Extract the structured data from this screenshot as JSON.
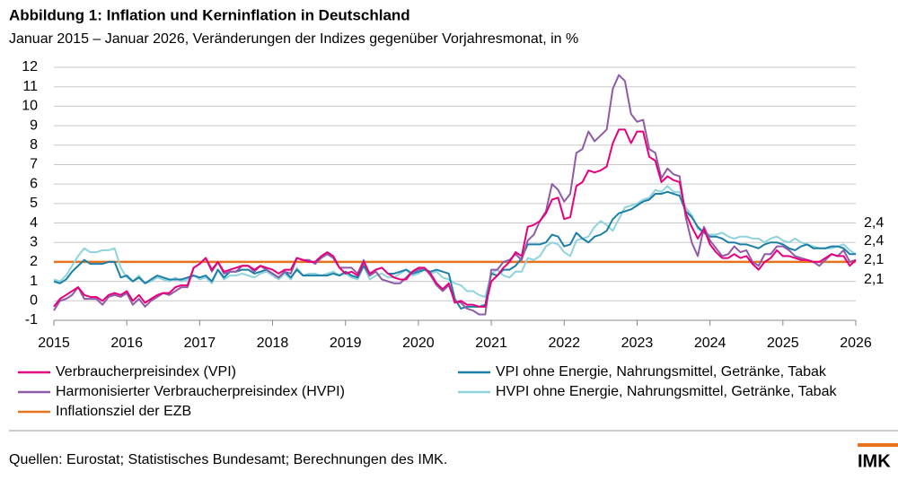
{
  "chart_data": {
    "type": "line",
    "title": "Abbildung 1: Inflation und Kerninflation in Deutschland",
    "subtitle": "Januar 2015 – Januar 2026, Veränderungen der Indizes gegenüber Vorjahresmonat, in %",
    "x": [
      2015,
      2015.083,
      2015.167,
      2015.25,
      2015.333,
      2015.417,
      2015.5,
      2015.583,
      2015.667,
      2015.75,
      2015.833,
      2015.917,
      2016,
      2016.083,
      2016.167,
      2016.25,
      2016.333,
      2016.417,
      2016.5,
      2016.583,
      2016.667,
      2016.75,
      2016.833,
      2016.917,
      2017,
      2017.083,
      2017.167,
      2017.25,
      2017.333,
      2017.417,
      2017.5,
      2017.583,
      2017.667,
      2017.75,
      2017.833,
      2017.917,
      2018,
      2018.083,
      2018.167,
      2018.25,
      2018.333,
      2018.417,
      2018.5,
      2018.583,
      2018.667,
      2018.75,
      2018.833,
      2018.917,
      2019,
      2019.083,
      2019.167,
      2019.25,
      2019.333,
      2019.417,
      2019.5,
      2019.583,
      2019.667,
      2019.75,
      2019.833,
      2019.917,
      2020,
      2020.083,
      2020.167,
      2020.25,
      2020.333,
      2020.417,
      2020.5,
      2020.583,
      2020.667,
      2020.75,
      2020.833,
      2020.917,
      2021,
      2021.083,
      2021.167,
      2021.25,
      2021.333,
      2021.417,
      2021.5,
      2021.583,
      2021.667,
      2021.75,
      2021.833,
      2021.917,
      2022,
      2022.083,
      2022.167,
      2022.25,
      2022.333,
      2022.417,
      2022.5,
      2022.583,
      2022.667,
      2022.75,
      2022.833,
      2022.917,
      2023,
      2023.083,
      2023.167,
      2023.25,
      2023.333,
      2023.417,
      2023.5,
      2023.583,
      2023.667,
      2023.75,
      2023.833,
      2023.917,
      2024,
      2024.083,
      2024.167,
      2024.25,
      2024.333,
      2024.417,
      2024.5,
      2024.583,
      2024.667,
      2024.75,
      2024.833,
      2024.917,
      2025,
      2025.083,
      2025.167,
      2025.25,
      2025.333,
      2025.417,
      2025.5,
      2025.583,
      2025.667,
      2025.75,
      2025.833,
      2025.917,
      2026
    ],
    "series": [
      {
        "name": "Verbraucherpreisindex (VPI)",
        "color": "#e6007e",
        "end_label": "2,1",
        "values": [
          -0.3,
          0.1,
          0.3,
          0.5,
          0.7,
          0.3,
          0.2,
          0.2,
          0.0,
          0.3,
          0.4,
          0.3,
          0.5,
          0.0,
          0.3,
          -0.1,
          0.1,
          0.3,
          0.4,
          0.4,
          0.7,
          0.8,
          0.8,
          1.7,
          1.9,
          2.2,
          1.6,
          2.0,
          1.5,
          1.6,
          1.7,
          1.8,
          1.8,
          1.6,
          1.8,
          1.7,
          1.6,
          1.4,
          1.6,
          1.6,
          2.2,
          2.1,
          2.0,
          2.0,
          2.3,
          2.5,
          2.3,
          1.7,
          1.4,
          1.5,
          1.3,
          2.0,
          1.4,
          1.6,
          1.7,
          1.4,
          1.2,
          1.1,
          1.1,
          1.5,
          1.7,
          1.7,
          1.4,
          0.9,
          0.6,
          0.9,
          -0.1,
          0.0,
          -0.2,
          -0.2,
          -0.3,
          -0.3,
          1.0,
          1.3,
          1.7,
          2.0,
          2.5,
          2.3,
          3.8,
          3.9,
          4.1,
          4.5,
          5.2,
          5.3,
          4.2,
          4.3,
          5.9,
          6.1,
          6.7,
          6.6,
          6.7,
          6.9,
          8.1,
          8.8,
          8.8,
          8.1,
          8.7,
          8.7,
          7.4,
          7.2,
          6.1,
          6.4,
          6.2,
          6.1,
          4.5,
          3.8,
          3.2,
          3.7,
          2.9,
          2.5,
          2.2,
          2.2,
          2.4,
          2.2,
          2.3,
          1.9,
          1.6,
          2.0,
          2.2,
          2.6,
          2.3,
          2.3,
          2.2,
          2.1,
          2.1,
          2.0,
          2.0,
          2.2,
          2.4,
          2.3,
          2.3,
          1.8,
          2.1
        ]
      },
      {
        "name": "Harmonisierter Verbraucherpreisindex (HVPI)",
        "color": "#8e5ba6",
        "end_label": "2,1",
        "values": [
          -0.5,
          0.0,
          0.1,
          0.3,
          0.7,
          0.1,
          0.1,
          0.1,
          -0.2,
          0.2,
          0.3,
          0.2,
          0.4,
          -0.2,
          0.1,
          -0.3,
          0.0,
          0.2,
          0.4,
          0.3,
          0.5,
          0.7,
          0.7,
          1.7,
          1.9,
          2.2,
          1.5,
          2.0,
          1.4,
          1.5,
          1.5,
          1.8,
          1.8,
          1.5,
          1.8,
          1.6,
          1.4,
          1.2,
          1.5,
          1.4,
          2.2,
          2.1,
          2.1,
          1.9,
          2.2,
          2.4,
          2.2,
          1.7,
          1.7,
          1.7,
          1.4,
          2.1,
          1.3,
          1.5,
          1.1,
          1.0,
          0.9,
          0.9,
          1.2,
          1.5,
          1.6,
          1.7,
          1.3,
          0.8,
          0.5,
          0.8,
          0.0,
          -0.1,
          -0.4,
          -0.5,
          -0.7,
          -0.7,
          1.6,
          1.6,
          2.0,
          2.1,
          2.4,
          2.1,
          3.1,
          3.4,
          4.1,
          4.6,
          6.0,
          5.7,
          5.1,
          5.5,
          7.6,
          7.8,
          8.7,
          8.2,
          8.5,
          8.8,
          10.9,
          11.6,
          11.3,
          9.6,
          9.2,
          9.3,
          7.8,
          7.6,
          6.3,
          6.8,
          6.5,
          6.4,
          4.3,
          3.0,
          2.3,
          3.8,
          3.1,
          2.7,
          2.3,
          2.4,
          2.8,
          2.5,
          2.6,
          2.0,
          1.8,
          2.4,
          2.4,
          2.8,
          2.8,
          2.6,
          2.3,
          2.2,
          2.1,
          2.0,
          1.8,
          2.1,
          2.4,
          2.3,
          2.6,
          2.0,
          2.1
        ]
      },
      {
        "name": "VPI ohne Energie, Nahrungsmittel, Getränke, Tabak",
        "color": "#1b7fa8",
        "end_label": "2,4",
        "values": [
          1.0,
          0.9,
          1.1,
          1.5,
          1.8,
          2.1,
          1.9,
          1.9,
          1.9,
          2.0,
          2.0,
          1.2,
          1.3,
          1.0,
          1.2,
          0.9,
          1.1,
          1.3,
          1.2,
          1.1,
          1.1,
          1.1,
          1.2,
          1.3,
          1.2,
          1.3,
          1.0,
          1.6,
          1.2,
          1.5,
          1.5,
          1.6,
          1.6,
          1.4,
          1.5,
          1.6,
          1.4,
          1.2,
          1.5,
          1.2,
          1.6,
          1.3,
          1.3,
          1.3,
          1.3,
          1.3,
          1.4,
          1.3,
          1.5,
          1.3,
          1.2,
          1.8,
          1.3,
          1.6,
          1.7,
          1.4,
          1.4,
          1.5,
          1.6,
          1.4,
          1.5,
          1.6,
          1.5,
          1.6,
          1.5,
          1.4,
          0.1,
          -0.4,
          -0.3,
          -0.3,
          -0.3,
          -0.2,
          1.4,
          1.3,
          1.6,
          1.6,
          1.8,
          2.2,
          2.9,
          2.9,
          2.9,
          3.0,
          3.4,
          3.3,
          2.8,
          2.9,
          3.5,
          3.2,
          3.0,
          3.3,
          3.4,
          3.6,
          4.2,
          4.5,
          4.6,
          4.7,
          4.9,
          5.1,
          5.2,
          5.5,
          5.5,
          5.6,
          5.5,
          5.4,
          4.6,
          4.3,
          3.8,
          3.5,
          3.3,
          3.3,
          3.2,
          3.0,
          3.0,
          2.9,
          2.9,
          2.8,
          2.7,
          2.9,
          3.0,
          3.0,
          2.9,
          2.7,
          2.6,
          2.8,
          2.9,
          2.7,
          2.7,
          2.7,
          2.8,
          2.8,
          2.7,
          2.4,
          2.4
        ]
      },
      {
        "name": "HVPI ohne Energie, Nahrungsmittel, Getränke, Tabak",
        "color": "#8fd3dc",
        "end_label": "2,4",
        "values": [
          1.1,
          1.0,
          1.3,
          1.8,
          2.3,
          2.7,
          2.5,
          2.5,
          2.6,
          2.6,
          2.7,
          1.7,
          1.2,
          1.0,
          1.3,
          0.9,
          1.0,
          1.2,
          1.1,
          1.0,
          1.2,
          1.0,
          1.1,
          1.3,
          1.1,
          1.2,
          0.9,
          1.6,
          1.1,
          1.3,
          1.3,
          1.4,
          1.3,
          1.2,
          1.4,
          1.5,
          1.3,
          1.1,
          1.4,
          1.1,
          1.7,
          1.3,
          1.4,
          1.4,
          1.3,
          1.4,
          1.5,
          1.3,
          1.4,
          1.2,
          1.1,
          1.8,
          1.1,
          1.3,
          1.4,
          1.2,
          1.2,
          1.4,
          1.6,
          1.3,
          1.4,
          1.6,
          1.4,
          1.5,
          1.2,
          1.1,
          0.9,
          0.8,
          0.5,
          0.5,
          0.3,
          0.2,
          1.4,
          1.6,
          1.3,
          1.2,
          1.5,
          1.5,
          2.2,
          2.1,
          2.3,
          2.8,
          3.0,
          2.9,
          2.5,
          2.3,
          3.1,
          3.2,
          3.3,
          3.8,
          4.1,
          3.9,
          3.6,
          4.2,
          4.8,
          4.9,
          5.0,
          5.2,
          5.3,
          5.7,
          5.6,
          5.9,
          5.6,
          5.6,
          4.8,
          4.4,
          3.7,
          3.5,
          3.4,
          3.4,
          3.5,
          3.3,
          3.2,
          3.3,
          3.3,
          3.2,
          3.2,
          3.0,
          3.2,
          3.3,
          3.1,
          3.0,
          3.2,
          3.0,
          2.9,
          2.8,
          2.7,
          2.7,
          2.7,
          2.8,
          2.9,
          2.6,
          2.4
        ]
      }
    ],
    "reference_line": {
      "name": "Inflationsziel der EZB",
      "color": "#e8731e",
      "value": 2
    },
    "xlim": [
      2015,
      2026
    ],
    "xticks": [
      2015,
      2016,
      2017,
      2018,
      2019,
      2020,
      2021,
      2022,
      2023,
      2024,
      2025,
      2026
    ],
    "ylim": [
      -1,
      12
    ],
    "yticks": [
      -1,
      0,
      1,
      2,
      3,
      4,
      5,
      6,
      7,
      8,
      9,
      10,
      11,
      12
    ],
    "grid": true,
    "source": "Quellen: Eurostat; Statistisches Bundesamt; Berechnungen des IMK."
  },
  "logo": "IMK"
}
